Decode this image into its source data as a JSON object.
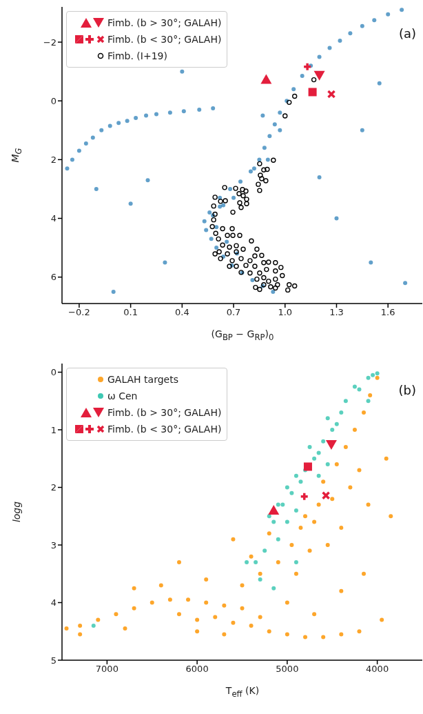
{
  "chart_data": [
    {
      "type": "scatter",
      "xlabel": "(G$_{BP}$ − G$_{RP}$)$_{0}$",
      "ylabel": "M$_{G}$",
      "annotations": [
        "(a)"
      ],
      "legend": "top left",
      "xlim": [
        -0.3,
        1.8
      ],
      "ylim": [
        6.9,
        -3.2
      ],
      "xticks": [
        {
          "value": -0.2,
          "label": "−0.2"
        },
        0.1,
        0.4,
        0.7,
        {
          "value": 1,
          "label": "1.0"
        },
        1.3,
        1.6
      ],
      "yticks": [
        {
          "value": -2,
          "label": "−2"
        },
        0,
        2,
        4,
        6
      ],
      "series": [
        {
          "color": "#1f77b4",
          "marker": "circle",
          "x": [
            -0.27,
            -0.24,
            -0.2,
            -0.16,
            -0.12,
            -0.07,
            -0.02,
            0.03,
            0.08,
            0.13,
            0.19,
            0.25,
            0.33,
            0.41,
            0.5,
            0.58,
            0.62,
            0.68,
            0.74,
            0.8,
            0.85,
            0.88,
            0.91,
            0.94,
            0.97,
            1.01,
            1.05,
            1.1,
            1.15,
            1.2,
            1.26,
            1.32,
            1.38,
            1.45,
            1.52,
            1.6,
            1.68,
            0.82,
            0.9,
            0.97,
            0.87,
            0.7,
            0.62,
            0.56,
            0.53,
            0.54,
            0.57,
            0.6,
            0.64,
            0.69,
            0.75,
            0.81,
            0.87,
            0.93,
            0.6,
            0.66,
            0.72,
            0.58,
            0.64,
            0.1,
            -0.1,
            0.3,
            0.2,
            1.3,
            1.5,
            1.2,
            1.45,
            0.0,
            1.7,
            0.4,
            1.55
          ],
          "values": [
            2.3,
            2.0,
            1.7,
            1.45,
            1.25,
            1.0,
            0.85,
            0.75,
            0.68,
            0.58,
            0.5,
            0.45,
            0.4,
            0.35,
            0.3,
            0.25,
            3.3,
            3.0,
            2.75,
            2.4,
            2.0,
            1.6,
            1.2,
            0.8,
            0.4,
            0.0,
            -0.4,
            -0.85,
            -1.2,
            -1.5,
            -1.8,
            -2.05,
            -2.3,
            -2.55,
            -2.75,
            -2.95,
            -3.1,
            2.3,
            2.0,
            1.0,
            0.5,
            3.3,
            3.6,
            3.8,
            4.1,
            4.4,
            4.7,
            5.0,
            5.3,
            5.6,
            5.85,
            6.1,
            6.3,
            6.5,
            4.3,
            4.8,
            5.2,
            3.9,
            3.55,
            3.5,
            3.0,
            5.5,
            2.7,
            4.0,
            5.5,
            2.6,
            1.0,
            6.5,
            6.2,
            -1.0,
            -0.6
          ]
        },
        {
          "name": "Fimb. (b > 30°; GALAH)",
          "color": "#e31e3c",
          "marker": "triangle",
          "x": [
            0.89
          ],
          "values": [
            -0.72
          ]
        },
        {
          "color": "#e31e3c",
          "marker": "triangle-down",
          "x": [
            1.2
          ],
          "values": [
            -0.88
          ]
        },
        {
          "name": "Fimb. (b < 30°; GALAH)",
          "color": "#e31e3c",
          "marker": "square",
          "x": [
            1.16
          ],
          "values": [
            -0.3
          ]
        },
        {
          "color": "#e31e3c",
          "marker": "plus",
          "x": [
            1.13
          ],
          "values": [
            -1.16
          ]
        },
        {
          "color": "#e31e3c",
          "marker": "cross",
          "x": [
            1.27
          ],
          "values": [
            -0.23
          ]
        },
        {
          "name": "Fimb. (I+19)",
          "color": "#000000",
          "marker": "circle-open",
          "x": [
            1.168,
            1.056,
            1.024,
            1.0,
            0.932,
            0.852,
            0.876,
            0.896,
            0.856,
            0.864,
            0.888,
            0.844,
            0.852,
            0.648,
            0.712,
            0.752,
            0.772,
            0.732,
            0.756,
            0.776,
            0.736,
            0.776,
            0.744,
            0.592,
            0.624,
            0.652,
            0.696,
            0.584,
            0.592,
            0.584,
            0.576,
            0.596,
            0.612,
            0.636,
            0.664,
            0.692,
            0.696,
            0.736,
            0.804,
            0.636,
            0.676,
            0.716,
            0.616,
            0.664,
            0.716,
            0.756,
            0.836,
            0.692,
            0.744,
            0.796,
            0.824,
            0.864,
            0.716,
            0.772,
            0.824,
            0.876,
            0.904,
            0.744,
            0.796,
            0.852,
            0.892,
            0.944,
            0.976,
            0.944,
            0.984,
            0.836,
            0.876,
            0.904,
            0.944,
            0.956,
            0.916,
            0.876,
            0.828,
            0.852,
            0.944,
            1.016,
            1.024,
            1.056,
            0.592,
            0.624,
            0.676
          ],
          "values": [
            -0.72,
            -0.16,
            0.05,
            0.51,
            2.02,
            2.14,
            2.35,
            2.33,
            2.53,
            2.65,
            2.72,
            2.84,
            3.05,
            2.95,
            2.98,
            3.02,
            3.07,
            3.16,
            3.23,
            3.35,
            3.47,
            3.5,
            3.63,
            3.28,
            3.42,
            3.4,
            3.79,
            3.58,
            3.86,
            4.05,
            4.28,
            4.51,
            4.7,
            4.35,
            4.58,
            4.35,
            4.58,
            4.58,
            4.77,
            4.91,
            4.98,
            4.93,
            5.14,
            5.21,
            5.14,
            5.05,
            5.05,
            5.44,
            5.37,
            5.44,
            5.28,
            5.26,
            5.63,
            5.6,
            5.63,
            5.51,
            5.49,
            5.84,
            5.86,
            5.86,
            5.74,
            5.51,
            5.67,
            5.79,
            5.95,
            6.07,
            6.02,
            6.14,
            6.07,
            6.26,
            6.33,
            6.26,
            6.35,
            6.42,
            6.37,
            6.44,
            6.26,
            6.3,
            5.21,
            5.37,
            5.63
          ]
        }
      ]
    },
    {
      "type": "scatter",
      "xlabel": "T$_{eff}$ (K)",
      "ylabel": "logg",
      "annotations": [
        "(b)"
      ],
      "legend": "top left",
      "xlim": [
        7500,
        3500
      ],
      "ylim": [
        5,
        -0.15
      ],
      "xticks": [
        7000,
        6000,
        5000,
        4000
      ],
      "yticks": [
        0,
        1,
        2,
        3,
        4,
        5
      ],
      "series": [
        {
          "name": "GALAH targets",
          "color": "#fda62b",
          "marker": "circle",
          "x": [
            7450,
            7300,
            7100,
            6900,
            6700,
            6500,
            6300,
            6100,
            5900,
            5700,
            5500,
            6200,
            6000,
            5800,
            5600,
            5400,
            5200,
            5000,
            4800,
            4600,
            4400,
            4200,
            6000,
            5700,
            6400,
            6700,
            5500,
            5300,
            5100,
            4950,
            4850,
            4800,
            4700,
            4650,
            4900,
            4750,
            5200,
            5400,
            4600,
            4450,
            4350,
            4250,
            4150,
            4080,
            4000,
            4300,
            4200,
            4100,
            4400,
            4550,
            4500,
            3900,
            3850,
            4150,
            4400,
            3950,
            5600,
            5900,
            6200,
            7300,
            6800,
            5300,
            5000,
            4700
          ],
          "values": [
            4.45,
            4.4,
            4.3,
            4.2,
            4.1,
            4.0,
            3.95,
            3.95,
            4.0,
            4.05,
            4.1,
            4.2,
            4.3,
            4.25,
            4.35,
            4.4,
            4.5,
            4.55,
            4.6,
            4.6,
            4.55,
            4.5,
            4.5,
            4.55,
            3.7,
            3.75,
            3.7,
            3.5,
            3.3,
            3.0,
            2.7,
            2.5,
            2.6,
            2.3,
            3.5,
            3.1,
            2.8,
            3.2,
            1.9,
            1.6,
            1.3,
            1.0,
            0.7,
            0.4,
            0.1,
            2.0,
            1.7,
            2.3,
            2.7,
            3.0,
            2.2,
            1.5,
            2.5,
            3.5,
            3.8,
            4.3,
            2.9,
            3.6,
            3.3,
            4.55,
            4.45,
            4.25,
            4.0,
            4.2
          ]
        },
        {
          "name": "ω Cen",
          "color": "#3ec8b3",
          "marker": "circle",
          "x": [
            4000,
            4050,
            4100,
            4200,
            4250,
            4350,
            4400,
            4450,
            4500,
            4550,
            4600,
            4650,
            4700,
            4750,
            4800,
            4850,
            4900,
            4950,
            5000,
            5050,
            5100,
            5150,
            5200,
            5000,
            4900,
            5250,
            5350,
            5450,
            5300,
            5150,
            7150,
            4900,
            4100,
            4550,
            4650,
            5100
          ],
          "values": [
            0.02,
            0.05,
            0.1,
            0.3,
            0.25,
            0.5,
            0.7,
            0.9,
            1.0,
            0.8,
            1.2,
            1.4,
            1.5,
            1.3,
            1.7,
            1.9,
            1.8,
            2.1,
            2.0,
            2.3,
            2.3,
            2.6,
            2.5,
            2.6,
            2.4,
            3.1,
            3.3,
            3.3,
            3.6,
            3.75,
            4.4,
            3.3,
            0.5,
            1.6,
            1.8,
            2.9
          ]
        },
        {
          "name": "Fimb. (b > 30°; GALAH)",
          "color": "#e31e3c",
          "marker": "triangle",
          "x": [
            5150
          ],
          "values": [
            2.4
          ]
        },
        {
          "color": "#e31e3c",
          "marker": "triangle-down",
          "x": [
            4510
          ],
          "values": [
            1.25
          ]
        },
        {
          "name": "Fimb. (b < 30°; GALAH)",
          "color": "#e31e3c",
          "marker": "square",
          "x": [
            4770
          ],
          "values": [
            1.64
          ]
        },
        {
          "color": "#e31e3c",
          "marker": "plus",
          "x": [
            4810
          ],
          "values": [
            2.16
          ]
        },
        {
          "color": "#e31e3c",
          "marker": "cross",
          "x": [
            4570
          ],
          "values": [
            2.14
          ]
        }
      ]
    }
  ]
}
